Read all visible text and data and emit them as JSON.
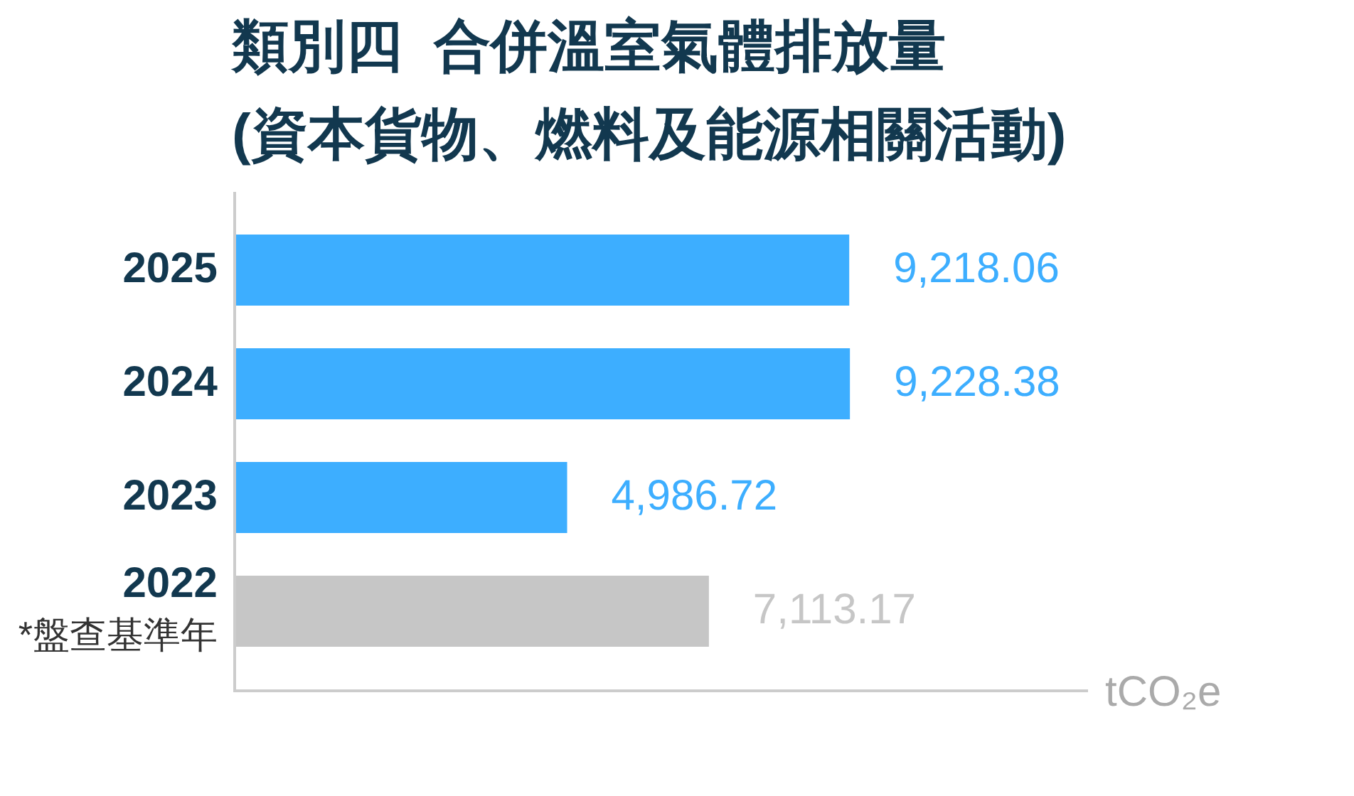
{
  "chart_data": {
    "type": "bar",
    "title": "類別四  合併溫室氣體排放量\n(資本貨物、燃料及能源相關活動)",
    "orientation": "horizontal",
    "categories": [
      "2025",
      "2024",
      "2023",
      "2022\n*盤查基準年"
    ],
    "values": [
      9218.06,
      9228.38,
      4986.72,
      7113.17
    ],
    "colors": [
      "#3daeff",
      "#3daeff",
      "#3daeff",
      "#c6c6c6"
    ],
    "value_labels": [
      "9,218.06",
      "9,228.38",
      "4,986.72",
      "7,113.17"
    ],
    "xlabel": "tCO₂e",
    "xlim": [
      0,
      12800
    ]
  }
}
